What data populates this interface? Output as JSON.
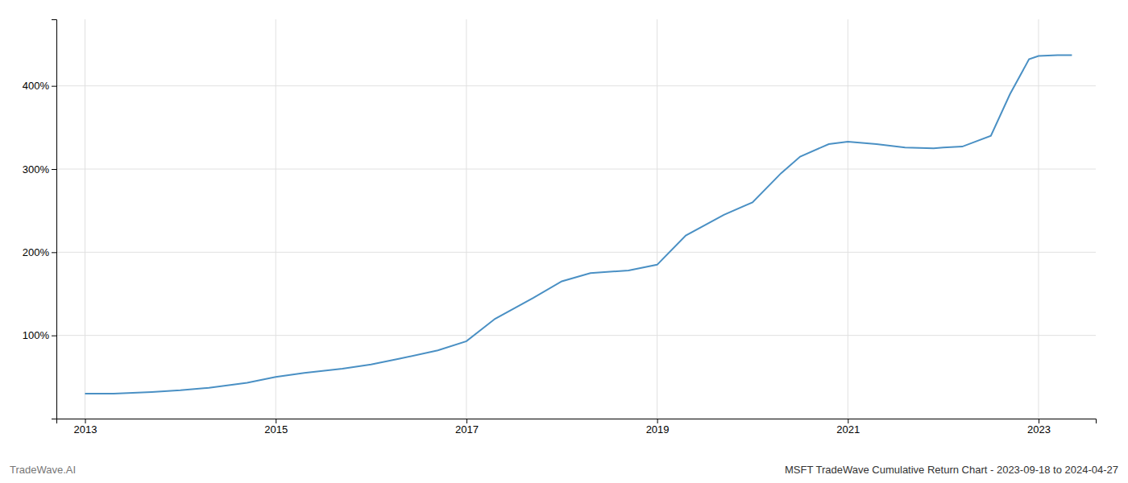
{
  "chart_data": {
    "type": "line",
    "title": "MSFT TradeWave Cumulative Return Chart - 2023-09-18 to 2024-04-27",
    "annotations": [
      "TradeWave.AI"
    ],
    "x": [
      2013.0,
      2013.3,
      2013.7,
      2014.0,
      2014.3,
      2014.7,
      2015.0,
      2015.3,
      2015.7,
      2016.0,
      2016.3,
      2016.7,
      2017.0,
      2017.3,
      2017.7,
      2018.0,
      2018.3,
      2018.7,
      2019.0,
      2019.3,
      2019.7,
      2020.0,
      2020.3,
      2020.5,
      2020.8,
      2021.0,
      2021.3,
      2021.6,
      2021.9,
      2022.0,
      2022.2,
      2022.5,
      2022.7,
      2022.9,
      2023.0,
      2023.2,
      2023.35
    ],
    "values": [
      30,
      30,
      32,
      34,
      37,
      43,
      50,
      55,
      60,
      65,
      72,
      82,
      93,
      120,
      145,
      165,
      175,
      178,
      185,
      220,
      245,
      260,
      295,
      315,
      330,
      333,
      330,
      326,
      325,
      326,
      327,
      340,
      390,
      432,
      436,
      437,
      437
    ],
    "color": "#4a90c4",
    "xlim": [
      2012.7,
      2023.6
    ],
    "xticks": [
      2013,
      2015,
      2017,
      2019,
      2021,
      2023
    ],
    "ylim": [
      0,
      480
    ],
    "yticks": [
      {
        "value": 100,
        "label": "100%"
      },
      {
        "value": 200,
        "label": "200%"
      },
      {
        "value": 300,
        "label": "300%"
      },
      {
        "value": 400,
        "label": "400%"
      }
    ],
    "grid": true
  }
}
